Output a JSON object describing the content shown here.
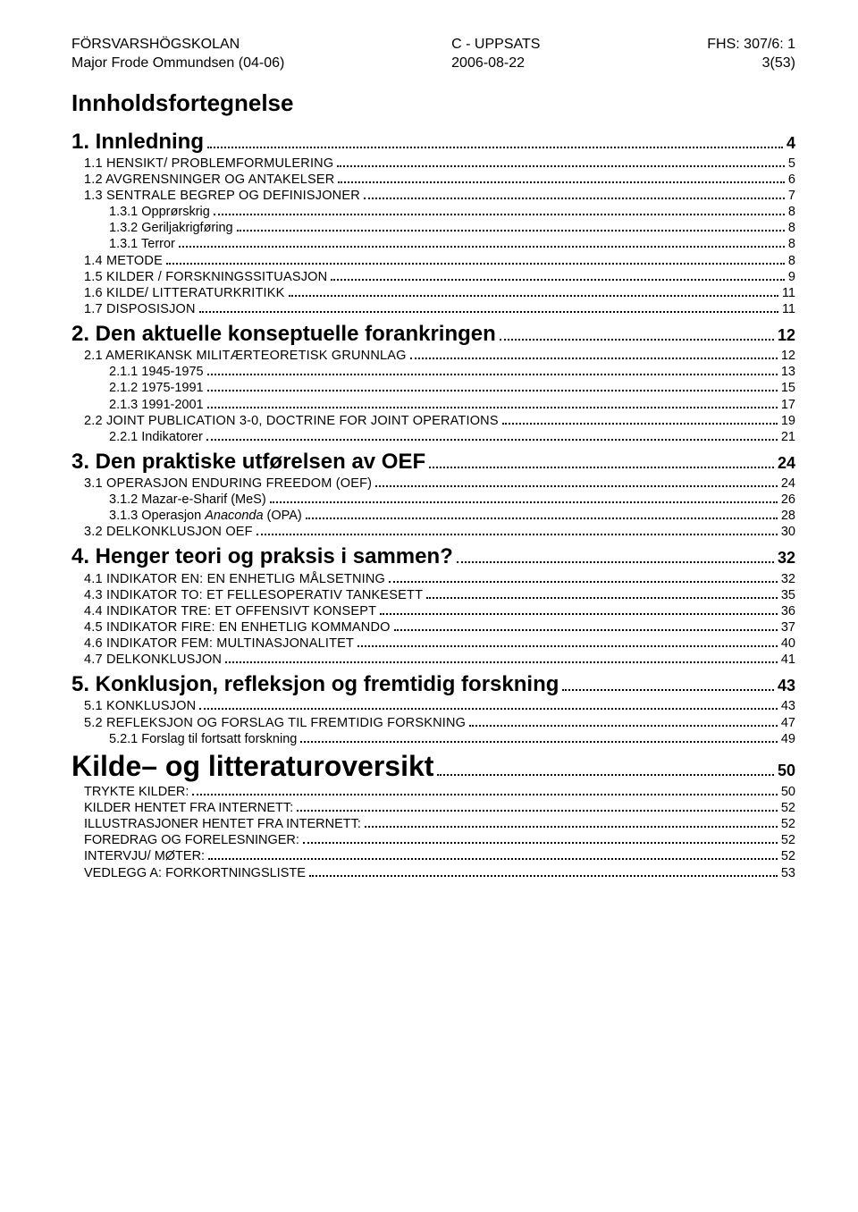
{
  "header": {
    "left_line1": "FÖRSVARSHÖGSKOLAN",
    "left_line2": "Major Frode Ommundsen (04-06)",
    "center_line1": "C - UPPSATS",
    "center_line2": "2006-08-22",
    "right_line1": "FHS: 307/6: 1",
    "right_line2": "3(53)"
  },
  "toc_title": "Innholdsfortegnelse",
  "sections": [
    {
      "level": "h1",
      "text": "1. Innledning",
      "page": "4"
    },
    {
      "level": "h2",
      "text": "1.1 HENSIKT/ PROBLEMFORMULERING",
      "page": "5"
    },
    {
      "level": "h2",
      "text": "1.2 AVGRENSNINGER OG ANTAKELSER",
      "page": "6"
    },
    {
      "level": "h2",
      "text": "1.3 SENTRALE BEGREP OG DEFINISJONER",
      "page": "7"
    },
    {
      "level": "h3",
      "text": "1.3.1 Opprørskrig",
      "page": "8"
    },
    {
      "level": "h3",
      "text": "1.3.2 Geriljakrigføring",
      "page": "8"
    },
    {
      "level": "h3",
      "text": "1.3.1 Terror",
      "page": "8"
    },
    {
      "level": "h2",
      "text": "1.4 METODE",
      "page": "8"
    },
    {
      "level": "h2",
      "text": "1.5 KILDER / FORSKNINGSSITUASJON",
      "page": "9"
    },
    {
      "level": "h2",
      "text": "1.6 KILDE/ LITTERATURKRITIKK",
      "page": "11"
    },
    {
      "level": "h2",
      "text": "1.7 DISPOSISJON",
      "page": "11"
    },
    {
      "level": "h1",
      "text": "2. Den aktuelle konseptuelle forankringen",
      "page": "12"
    },
    {
      "level": "h2",
      "text": "2.1 AMERIKANSK MILITÆRTEORETISK GRUNNLAG",
      "page": "12"
    },
    {
      "level": "h3",
      "text": "2.1.1 1945-1975",
      "page": "13"
    },
    {
      "level": "h3",
      "text": "2.1.2 1975-1991",
      "page": "15"
    },
    {
      "level": "h3",
      "text": "2.1.3 1991-2001",
      "page": "17"
    },
    {
      "level": "h2",
      "text": "2.2 JOINT PUBLICATION 3-0, DOCTRINE FOR JOINT OPERATIONS",
      "page": "19"
    },
    {
      "level": "h3",
      "text": "2.2.1 Indikatorer",
      "page": "21"
    },
    {
      "level": "h1",
      "text": "3. Den praktiske utførelsen av OEF",
      "page": "24"
    },
    {
      "level": "h2",
      "text": "3.1 OPERASJON ENDURING FREEDOM (OEF)",
      "page": "24"
    },
    {
      "level": "h3",
      "text": "3.1.2 Mazar-e-Sharif (MeS)",
      "page": "26"
    },
    {
      "level": "h3",
      "text": "3.1.3 Operasjon Anaconda (OPA)",
      "page": "28",
      "italic": true,
      "italic_word": "Anaconda"
    },
    {
      "level": "h2",
      "text": "3.2 DELKONKLUSJON OEF",
      "page": "30"
    },
    {
      "level": "h1",
      "text": "4. Henger teori og praksis i sammen?",
      "page": "32"
    },
    {
      "level": "h2",
      "text": "4.1 INDIKATOR EN: EN ENHETLIG MÅLSETNING",
      "page": "32"
    },
    {
      "level": "h2",
      "text": "4.3 INDIKATOR TO: ET FELLESOPERATIV TANKESETT",
      "page": "35"
    },
    {
      "level": "h2",
      "text": "4.4 INDIKATOR TRE: ET OFFENSIVT KONSEPT",
      "page": "36"
    },
    {
      "level": "h2",
      "text": "4.5 INDIKATOR FIRE: EN ENHETLIG KOMMANDO",
      "page": "37"
    },
    {
      "level": "h2",
      "text": "4.6 INDIKATOR FEM: MULTINASJONALITET",
      "page": "40"
    },
    {
      "level": "h2",
      "text": "4.7 DELKONKLUSJON",
      "page": "41"
    },
    {
      "level": "h1",
      "text": "5. Konklusjon, refleksjon og fremtidig forskning",
      "page": "43"
    },
    {
      "level": "h2",
      "text": "5.1 KONKLUSJON",
      "page": "43"
    },
    {
      "level": "h2",
      "text": "5.2 REFLEKSJON OG FORSLAG TIL FREMTIDIG FORSKNING",
      "page": "47"
    },
    {
      "level": "h3",
      "text": "5.2.1 Forslag til fortsatt forskning",
      "page": "49"
    },
    {
      "level": "big",
      "text": "Kilde– og litteraturoversikt",
      "page": "50"
    },
    {
      "level": "ref",
      "text": "TRYKTE KILDER:",
      "page": "50"
    },
    {
      "level": "ref",
      "text": "KILDER HENTET FRA INTERNETT:",
      "page": "52"
    },
    {
      "level": "ref",
      "text": "ILLUSTRASJONER HENTET FRA INTERNETT:",
      "page": "52"
    },
    {
      "level": "ref",
      "text": "FOREDRAG OG  FORELESNINGER:",
      "page": "52"
    },
    {
      "level": "ref",
      "text": "INTERVJU/ MØTER:",
      "page": "52"
    },
    {
      "level": "ref",
      "text": "VEDLEGG A: FORKORTNINGSLISTE",
      "page": "53"
    }
  ]
}
